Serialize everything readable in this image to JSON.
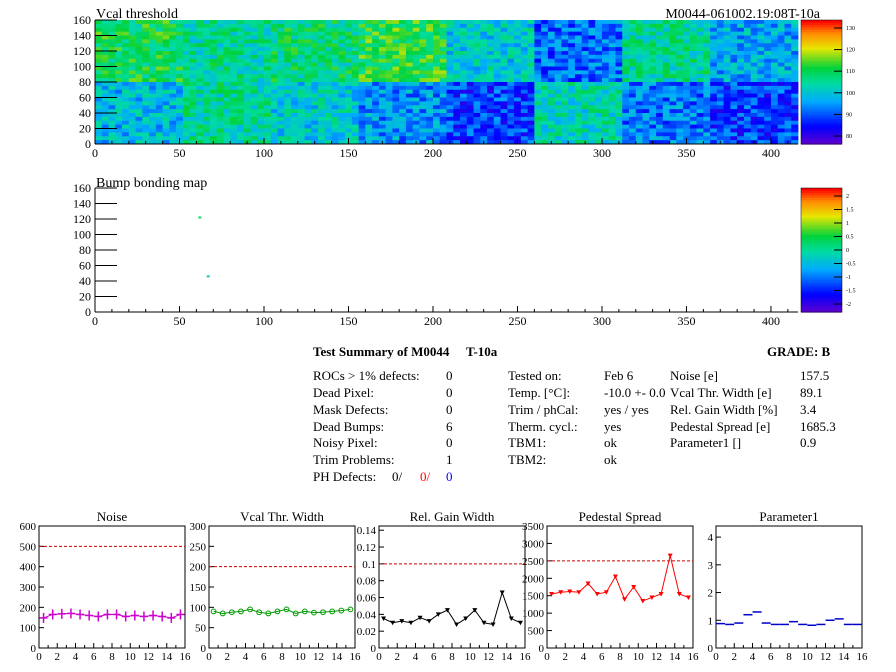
{
  "header": {
    "title": "Vcal threshold",
    "module_id": "M0044-061002.19:08T-10a"
  },
  "bump": {
    "title": "Bump bonding map"
  },
  "map_axes": {
    "x_ticks": [
      0,
      50,
      100,
      150,
      200,
      250,
      300,
      350,
      400
    ],
    "y_ticks": [
      0,
      20,
      40,
      60,
      80,
      100,
      120,
      140,
      160
    ],
    "xlim": [
      0,
      416
    ],
    "ylim": [
      0,
      160
    ]
  },
  "vcal_scale": {
    "ticks": [
      "130",
      "120",
      "110",
      "100",
      "90",
      "80"
    ],
    "range": [
      80,
      135
    ]
  },
  "bump_scale": {
    "ticks": [
      "2",
      "1.5",
      "1",
      "0.5",
      "0",
      "-0.5",
      "-1",
      "-1.5",
      "-2"
    ],
    "range": [
      -2,
      2
    ]
  },
  "vcal_levels": [
    [
      112,
      108,
      110,
      114,
      104,
      95,
      108,
      100
    ],
    [
      102,
      108,
      104,
      98,
      92,
      106,
      96,
      92
    ]
  ],
  "bump_points": [
    {
      "x": 62,
      "y": 122,
      "color": "#19d36a"
    },
    {
      "x": 67,
      "y": 46,
      "color": "#11c7b0"
    }
  ],
  "summary": {
    "title": "Test Summary of M0044",
    "test": "T-10a",
    "grade": "GRADE:  B",
    "defects": [
      {
        "label": "ROCs > 1% defects:",
        "value": "0"
      },
      {
        "label": "Dead Pixel:",
        "value": "0"
      },
      {
        "label": "Mask Defects:",
        "value": "0"
      },
      {
        "label": "Dead Bumps:",
        "value": "6"
      },
      {
        "label": "Noisy Pixel:",
        "value": "0"
      },
      {
        "label": "Trim Problems:",
        "value": "1"
      }
    ],
    "ph_label": "PH Defects:",
    "ph_values": [
      {
        "value": "0/",
        "color": "#000000"
      },
      {
        "value": "0/",
        "color": "#ff0000"
      },
      {
        "value": "0",
        "color": "#0000ff"
      }
    ],
    "conditions": [
      {
        "label": "Tested on:",
        "value": "Feb 6"
      },
      {
        "label": "Temp. [°C]:",
        "value": "-10.0 +- 0.0"
      },
      {
        "label": "Trim / phCal:",
        "value": "yes / yes"
      },
      {
        "label": "Therm. cycl.:",
        "value": "yes"
      },
      {
        "label": "TBM1:",
        "value": "ok"
      },
      {
        "label": "TBM2:",
        "value": "ok"
      }
    ],
    "metrics": [
      {
        "label": "Noise [e]",
        "value": "157.5"
      },
      {
        "label": "Vcal Thr. Width [e]",
        "value": "89.1"
      },
      {
        "label": "Rel. Gain Width [%]",
        "value": "3.4"
      },
      {
        "label": "Pedestal Spread [e]",
        "value": "1685.3"
      },
      {
        "label": "Parameter1 []",
        "value": "0.9"
      }
    ]
  },
  "chart_data": [
    {
      "type": "line",
      "title": "Noise",
      "color": "#cc00cc",
      "marker": "plus",
      "connect": true,
      "x": [
        0,
        1,
        2,
        3,
        4,
        5,
        6,
        7,
        8,
        9,
        10,
        11,
        12,
        13,
        14,
        15
      ],
      "values": [
        148,
        165,
        168,
        170,
        165,
        160,
        155,
        165,
        165,
        155,
        160,
        155,
        160,
        155,
        148,
        165
      ],
      "ylim": [
        0,
        600
      ],
      "yticks": [
        0,
        100,
        200,
        300,
        400,
        500,
        600
      ],
      "ytick_labels": [
        "0",
        "100",
        "200",
        "300",
        "400",
        "500",
        "600"
      ],
      "ref": 500
    },
    {
      "type": "line",
      "title": "Vcal Thr. Width",
      "color": "#009900",
      "marker": "circle",
      "connect": true,
      "x": [
        0,
        1,
        2,
        3,
        4,
        5,
        6,
        7,
        8,
        9,
        10,
        11,
        12,
        13,
        14,
        15
      ],
      "values": [
        90,
        85,
        88,
        90,
        95,
        88,
        85,
        90,
        95,
        85,
        90,
        87,
        88,
        90,
        92,
        95
      ],
      "ylim": [
        0,
        300
      ],
      "yticks": [
        0,
        50,
        100,
        150,
        200,
        250,
        300
      ],
      "ytick_labels": [
        "0",
        "50",
        "100",
        "150",
        "200",
        "250",
        "300"
      ],
      "ref": 200
    },
    {
      "type": "line",
      "title": "Rel. Gain Width",
      "color": "#000000",
      "marker": "triangle",
      "connect": true,
      "x": [
        0,
        1,
        2,
        3,
        4,
        5,
        6,
        7,
        8,
        9,
        10,
        11,
        12,
        13,
        14,
        15
      ],
      "values": [
        0.035,
        0.03,
        0.032,
        0.03,
        0.036,
        0.032,
        0.04,
        0.045,
        0.028,
        0.035,
        0.045,
        0.03,
        0.028,
        0.066,
        0.035,
        0.03
      ],
      "ylim": [
        0,
        0.145
      ],
      "yticks": [
        0,
        0.02,
        0.04,
        0.06,
        0.08,
        0.1,
        0.12,
        0.14
      ],
      "ytick_labels": [
        "0",
        "0.02",
        "0.04",
        "0.06",
        "0.08",
        "0.1",
        "0.12",
        "0.14"
      ],
      "ref": 0.1
    },
    {
      "type": "line",
      "title": "Pedestal Spread",
      "color": "#ff0000",
      "marker": "triangle",
      "connect": true,
      "x": [
        0,
        1,
        2,
        3,
        4,
        5,
        6,
        7,
        8,
        9,
        10,
        11,
        12,
        13,
        14,
        15
      ],
      "values": [
        1550,
        1600,
        1620,
        1600,
        1850,
        1550,
        1600,
        2050,
        1400,
        1750,
        1350,
        1450,
        1550,
        2650,
        1550,
        1450
      ],
      "ylim": [
        0,
        3500
      ],
      "yticks": [
        0,
        500,
        1000,
        1500,
        2000,
        2500,
        3000,
        3500
      ],
      "ytick_labels": [
        "0",
        "500",
        "1000",
        "1500",
        "2000",
        "2500",
        "3000",
        "3500"
      ],
      "ref": 2500
    },
    {
      "type": "scatter",
      "title": "Parameter1",
      "color": "#0000cc",
      "marker": "dash",
      "connect": false,
      "x": [
        0,
        1,
        2,
        3,
        4,
        5,
        6,
        7,
        8,
        9,
        10,
        11,
        12,
        13,
        14,
        15
      ],
      "values": [
        0.88,
        0.85,
        0.9,
        1.2,
        1.3,
        0.9,
        0.85,
        0.85,
        0.95,
        0.85,
        0.82,
        0.85,
        1.0,
        1.05,
        0.85,
        0.85
      ],
      "ylim": [
        0,
        4.4
      ],
      "yticks": [
        0,
        1,
        2,
        3,
        4
      ],
      "ytick_labels": [
        "0",
        "1",
        "2",
        "3",
        "4"
      ],
      "ref": null
    }
  ],
  "chart_x_ticks": [
    "0",
    "2",
    "4",
    "6",
    "8",
    "10",
    "12",
    "14",
    "16"
  ]
}
